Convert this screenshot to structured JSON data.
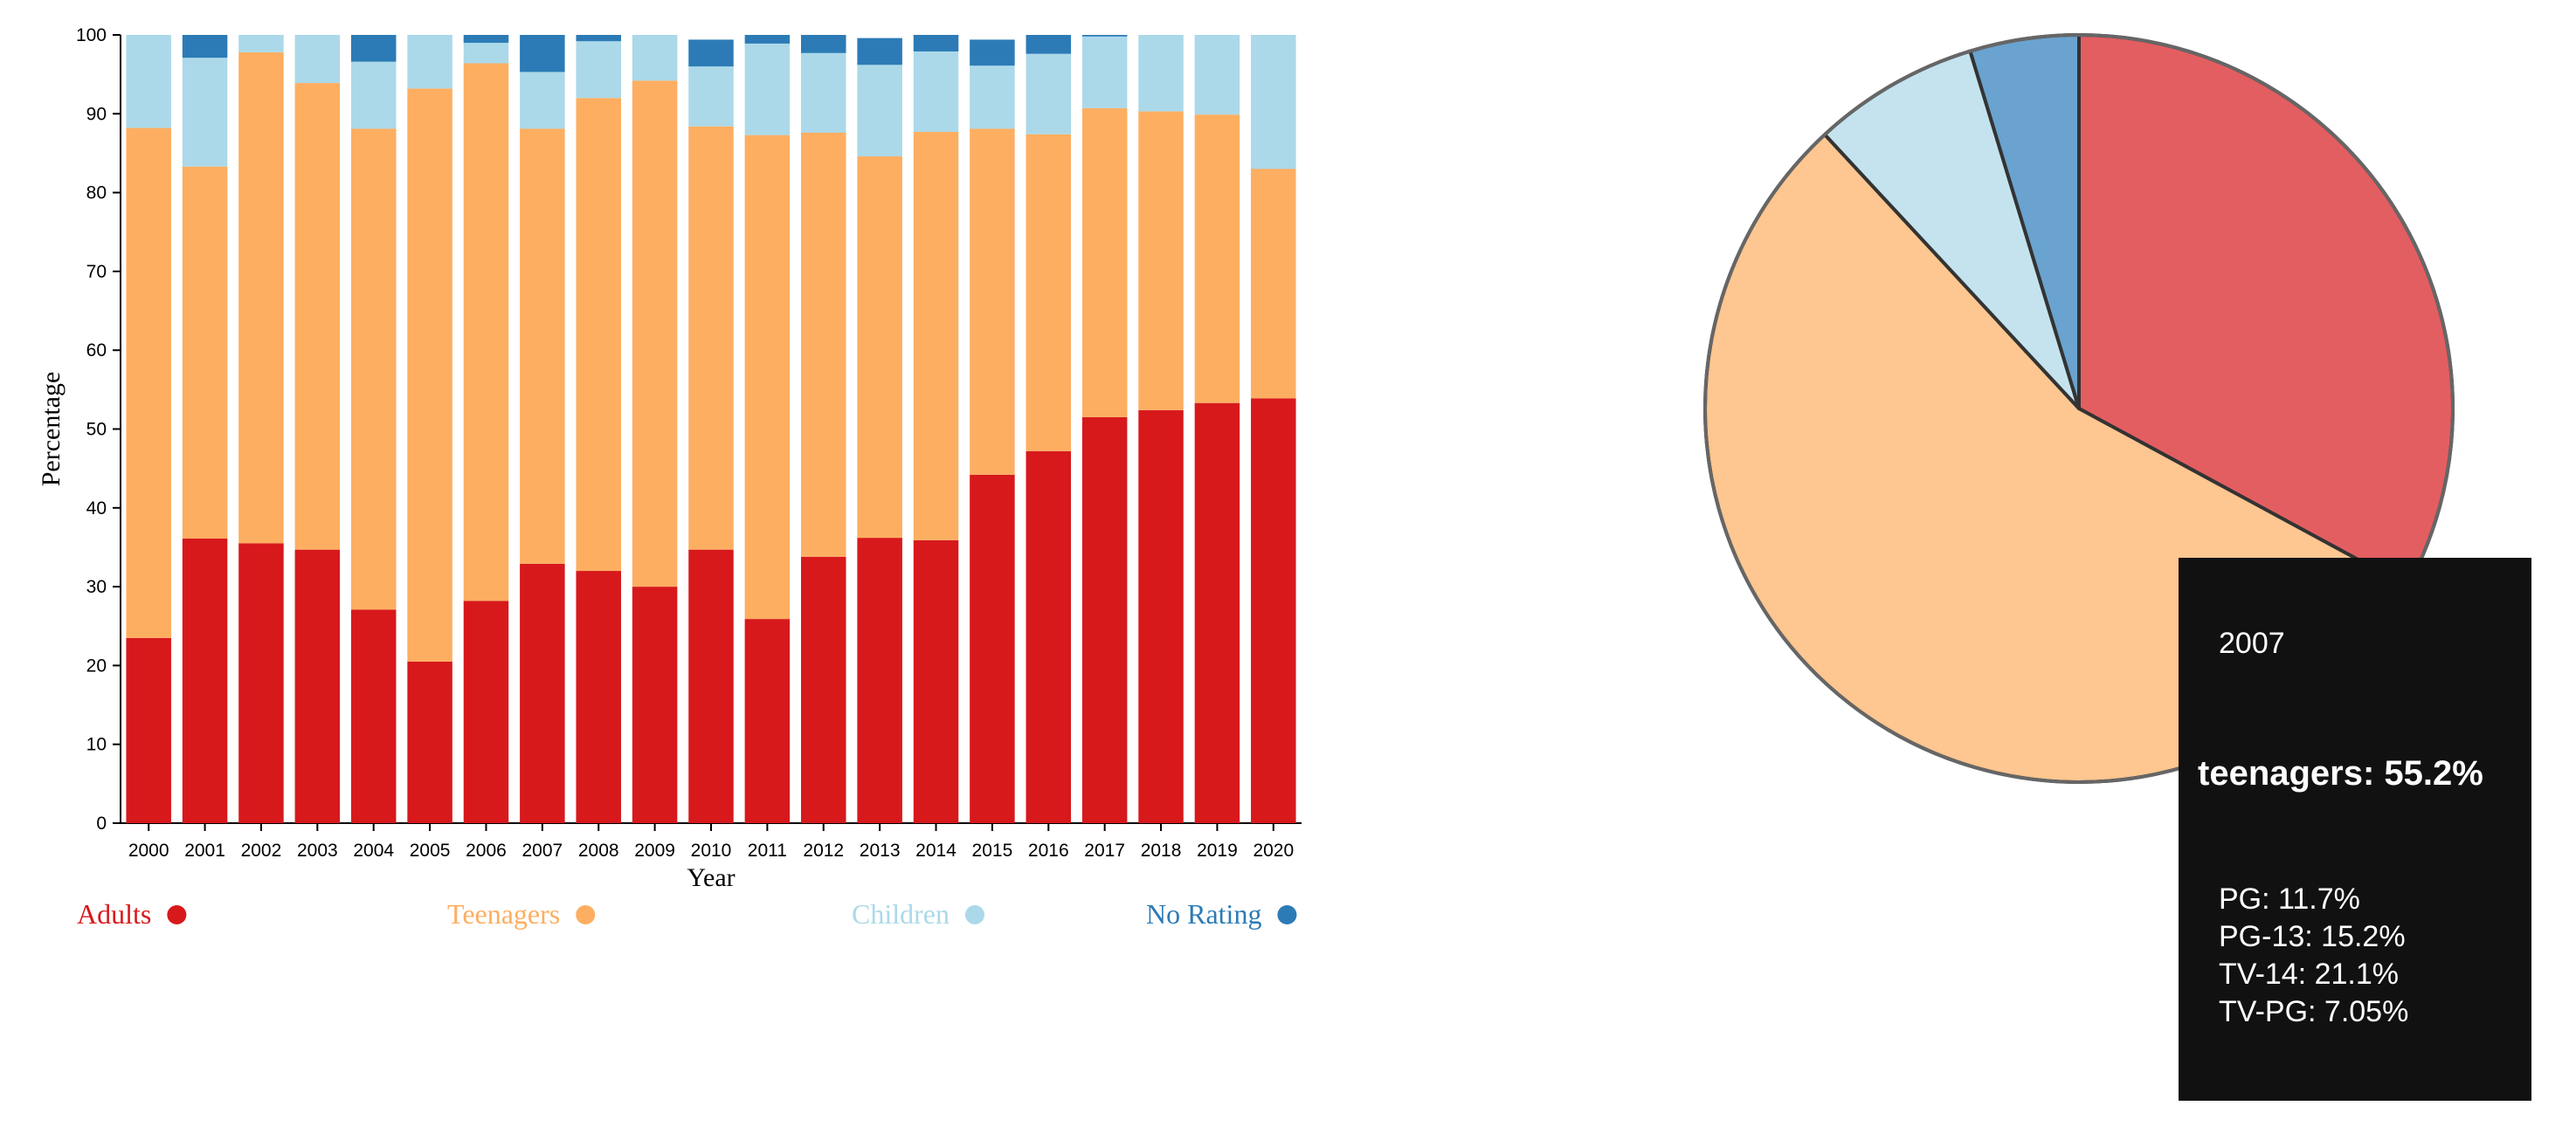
{
  "chart_data": [
    {
      "type": "bar",
      "stacked": true,
      "xlabel": "Year",
      "ylabel": "Percentage",
      "ylim": [
        0,
        100
      ],
      "yticks": [
        0,
        10,
        20,
        30,
        40,
        50,
        60,
        70,
        80,
        90,
        100
      ],
      "categories": [
        "2000",
        "2001",
        "2002",
        "2003",
        "2004",
        "2005",
        "2006",
        "2007",
        "2008",
        "2009",
        "2010",
        "2011",
        "2012",
        "2013",
        "2014",
        "2015",
        "2016",
        "2017",
        "2018",
        "2019",
        "2020"
      ],
      "series": [
        {
          "name": "Adults",
          "color": "#d7191c",
          "values": [
            23.5,
            36.1,
            35.5,
            34.7,
            27.1,
            20.5,
            28.2,
            32.9,
            32.0,
            30.0,
            34.7,
            25.9,
            33.8,
            36.2,
            35.9,
            44.2,
            47.2,
            51.5,
            52.4,
            53.3,
            53.9
          ]
        },
        {
          "name": "Teenagers",
          "color": "#fdae61",
          "values": [
            64.7,
            47.2,
            62.3,
            59.2,
            61.0,
            72.7,
            68.2,
            55.2,
            60.0,
            64.2,
            53.7,
            61.4,
            53.8,
            48.4,
            51.8,
            43.9,
            40.2,
            39.2,
            37.9,
            36.6,
            29.1
          ]
        },
        {
          "name": "Children",
          "color": "#abd9e9",
          "values": [
            11.8,
            13.8,
            2.2,
            6.1,
            8.5,
            6.8,
            2.6,
            7.2,
            7.2,
            5.8,
            7.6,
            11.6,
            10.1,
            11.6,
            10.2,
            8.0,
            10.2,
            9.1,
            9.7,
            10.1,
            17.0
          ]
        },
        {
          "name": "No Rating",
          "color": "#2c7bb6",
          "values": [
            0.0,
            2.9,
            0.0,
            0.0,
            3.4,
            0.0,
            1.0,
            4.7,
            0.8,
            0.0,
            3.4,
            1.1,
            2.3,
            3.4,
            2.1,
            3.3,
            2.4,
            0.2,
            0.0,
            0.0,
            0.0
          ]
        }
      ],
      "legend": [
        "Adults",
        "Teenagers",
        "Children",
        "No Rating"
      ],
      "legend_placement": "bottom",
      "grid": false
    },
    {
      "type": "pie",
      "year": "2007",
      "start": "top, clockwise",
      "slices": [
        {
          "label": "adults",
          "value": 32.9,
          "color": "#e35e61"
        },
        {
          "label": "teenagers",
          "value": 55.2,
          "color": "#fec690"
        },
        {
          "label": "children",
          "value": 7.2,
          "color": "#c4e3ee"
        },
        {
          "label": "no rating",
          "value": 4.7,
          "color": "#6aa3cf"
        }
      ]
    }
  ],
  "tooltip": {
    "year": "2007",
    "focus": "teenagers: 55.2%",
    "items": [
      "PG: 11.7%",
      "PG-13: 15.2%",
      "TV-14: 21.1%",
      "TV-PG: 7.05%"
    ]
  }
}
